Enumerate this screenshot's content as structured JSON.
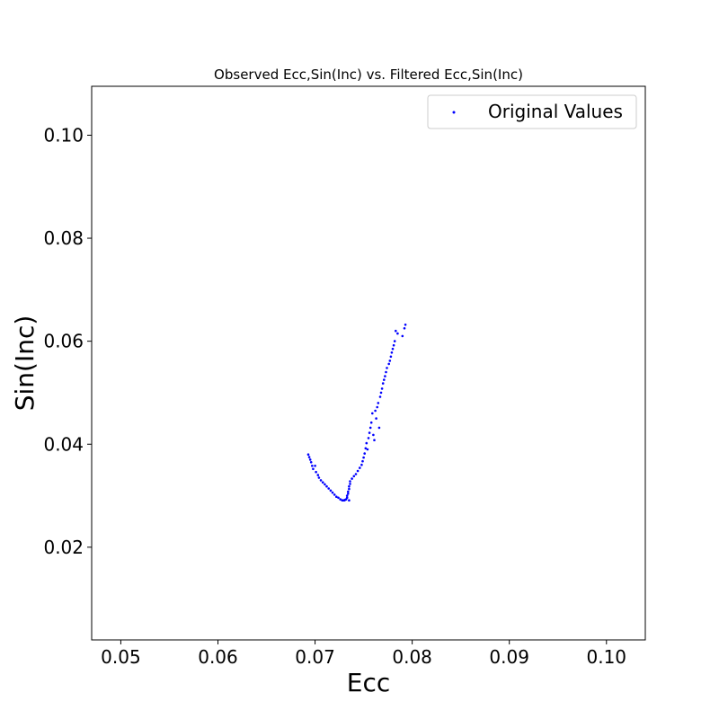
{
  "chart_data": {
    "type": "scatter",
    "title": "Observed Ecc,Sin(Inc) vs. Filtered Ecc,Sin(Inc)",
    "xlabel": "Ecc",
    "ylabel": "Sin(Inc)",
    "xlim": [
      0.047,
      0.104
    ],
    "ylim": [
      0.002,
      0.1095
    ],
    "xticks": [
      0.05,
      0.06,
      0.07,
      0.08,
      0.09,
      0.1
    ],
    "xtick_labels": [
      "0.05",
      "0.06",
      "0.07",
      "0.08",
      "0.09",
      "0.10"
    ],
    "yticks": [
      0.02,
      0.04,
      0.06,
      0.08,
      0.1
    ],
    "ytick_labels": [
      "0.02",
      "0.04",
      "0.06",
      "0.08",
      "0.10"
    ],
    "grid": false,
    "legend": {
      "position": "upper right",
      "entries": [
        "Original Values"
      ]
    },
    "series": [
      {
        "name": "Original Values",
        "color": "#0000ff",
        "marker": "point",
        "points": [
          [
            0.0693,
            0.038
          ],
          [
            0.0694,
            0.0375
          ],
          [
            0.0695,
            0.037
          ],
          [
            0.0696,
            0.0365
          ],
          [
            0.0697,
            0.0358
          ],
          [
            0.0698,
            0.0352
          ],
          [
            0.07,
            0.0358
          ],
          [
            0.0701,
            0.0346
          ],
          [
            0.0703,
            0.034
          ],
          [
            0.0704,
            0.0335
          ],
          [
            0.0706,
            0.033
          ],
          [
            0.0708,
            0.0326
          ],
          [
            0.071,
            0.0322
          ],
          [
            0.0712,
            0.0318
          ],
          [
            0.0714,
            0.0314
          ],
          [
            0.0716,
            0.031
          ],
          [
            0.0718,
            0.0306
          ],
          [
            0.072,
            0.0302
          ],
          [
            0.0722,
            0.0298
          ],
          [
            0.0724,
            0.0296
          ],
          [
            0.0726,
            0.0293
          ],
          [
            0.0728,
            0.0291
          ],
          [
            0.0729,
            0.0291
          ],
          [
            0.073,
            0.0291
          ],
          [
            0.0731,
            0.0292
          ],
          [
            0.0732,
            0.0293
          ],
          [
            0.0733,
            0.0296
          ],
          [
            0.0733,
            0.03
          ],
          [
            0.0734,
            0.0304
          ],
          [
            0.0734,
            0.0308
          ],
          [
            0.0735,
            0.0313
          ],
          [
            0.0735,
            0.0318
          ],
          [
            0.0735,
            0.0291
          ],
          [
            0.0736,
            0.0323
          ],
          [
            0.0736,
            0.0328
          ],
          [
            0.0738,
            0.0333
          ],
          [
            0.074,
            0.0338
          ],
          [
            0.0742,
            0.0342
          ],
          [
            0.0744,
            0.0348
          ],
          [
            0.0746,
            0.0354
          ],
          [
            0.0748,
            0.036
          ],
          [
            0.0749,
            0.0367
          ],
          [
            0.075,
            0.0374
          ],
          [
            0.0751,
            0.0382
          ],
          [
            0.0752,
            0.0392
          ],
          [
            0.0753,
            0.0402
          ],
          [
            0.0754,
            0.039
          ],
          [
            0.0755,
            0.0412
          ],
          [
            0.0756,
            0.0422
          ],
          [
            0.0757,
            0.0432
          ],
          [
            0.0758,
            0.0442
          ],
          [
            0.0759,
            0.046
          ],
          [
            0.076,
            0.0418
          ],
          [
            0.0761,
            0.0408
          ],
          [
            0.0762,
            0.0465
          ],
          [
            0.0763,
            0.045
          ],
          [
            0.0764,
            0.0472
          ],
          [
            0.0765,
            0.048
          ],
          [
            0.0766,
            0.0432
          ],
          [
            0.0767,
            0.0492
          ],
          [
            0.0768,
            0.05
          ],
          [
            0.0769,
            0.0508
          ],
          [
            0.077,
            0.0518
          ],
          [
            0.0771,
            0.0525
          ],
          [
            0.0772,
            0.0532
          ],
          [
            0.0773,
            0.054
          ],
          [
            0.0774,
            0.0548
          ],
          [
            0.0776,
            0.0556
          ],
          [
            0.0777,
            0.0562
          ],
          [
            0.0778,
            0.057
          ],
          [
            0.0779,
            0.0578
          ],
          [
            0.078,
            0.0585
          ],
          [
            0.0781,
            0.0592
          ],
          [
            0.0782,
            0.06
          ],
          [
            0.0783,
            0.062
          ],
          [
            0.0785,
            0.0615
          ],
          [
            0.079,
            0.061
          ],
          [
            0.0792,
            0.0625
          ],
          [
            0.0793,
            0.0632
          ]
        ]
      }
    ]
  }
}
